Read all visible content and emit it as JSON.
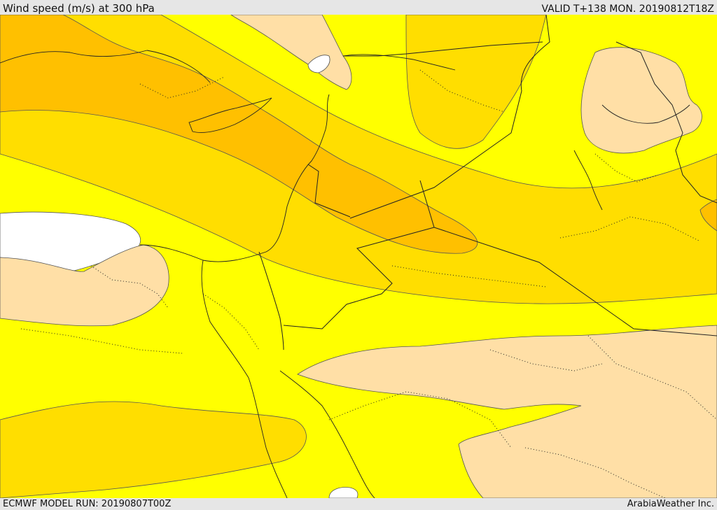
{
  "header": {
    "title": "Wind speed (m/s) at 300 hPa",
    "valid_time": "VALID T+138 MON. 20190812T18Z"
  },
  "footer": {
    "model_run": "ECMWF MODEL RUN: 20190807T00Z",
    "credit": "ArabiaWeather Inc."
  },
  "map": {
    "colors": {
      "band_white": "#ffffff",
      "band_light": "#ffdfa6",
      "band_yellow": "#ffff00",
      "band_gold": "#ffde00",
      "band_orange": "#ffc000",
      "contour_line": "#555555",
      "border_line": "#222222"
    }
  }
}
